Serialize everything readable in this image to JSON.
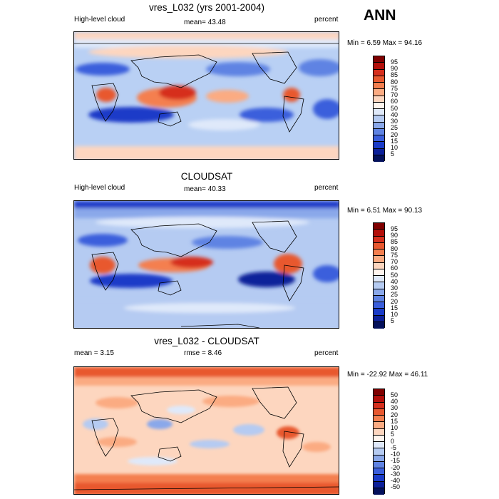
{
  "season": "ANN",
  "panels": [
    {
      "title": "vres_L032 (yrs 2001-2004)",
      "left_label": "High-level cloud",
      "mean_text": "mean=  43.48",
      "right_label": "percent",
      "minmax": "Min =   6.59 Max =  94.16",
      "bar_labels": [
        "95",
        "90",
        "85",
        "80",
        "75",
        "70",
        "60",
        "50",
        "40",
        "30",
        "25",
        "20",
        "15",
        "10",
        "5"
      ],
      "bar_colors": [
        "#7f0000",
        "#b30f0a",
        "#d62f1d",
        "#e8582f",
        "#f47f4f",
        "#fbab82",
        "#fdd6bf",
        "#fff5ee",
        "#dfe9fa",
        "#b5cbf2",
        "#8aa8ea",
        "#5f83e3",
        "#3a5edc",
        "#1a3bc8",
        "#0c209a",
        "#04115c"
      ]
    },
    {
      "title": "CLOUDSAT",
      "left_label": "High-level cloud",
      "mean_text": "mean=  40.33",
      "right_label": "percent",
      "minmax": "Min =   6.51 Max =  90.13",
      "bar_labels": [
        "95",
        "90",
        "85",
        "80",
        "75",
        "70",
        "60",
        "50",
        "40",
        "30",
        "25",
        "20",
        "15",
        "10",
        "5"
      ],
      "bar_colors": [
        "#7f0000",
        "#b30f0a",
        "#d62f1d",
        "#e8582f",
        "#f47f4f",
        "#fbab82",
        "#fdd6bf",
        "#fff5ee",
        "#dfe9fa",
        "#b5cbf2",
        "#8aa8ea",
        "#5f83e3",
        "#3a5edc",
        "#1a3bc8",
        "#0c209a",
        "#04115c"
      ]
    },
    {
      "title": "vres_L032 - CLOUDSAT",
      "left_label": "mean =   3.15",
      "mean_text": "rmse =   8.46",
      "right_label": "percent",
      "minmax": "Min = -22.92 Max =  46.11",
      "bar_labels": [
        "50",
        "40",
        "30",
        "20",
        "15",
        "10",
        "5",
        "0",
        "-5",
        "-10",
        "-15",
        "-20",
        "-30",
        "-40",
        "-50"
      ],
      "bar_colors": [
        "#7f0000",
        "#b30f0a",
        "#d62f1d",
        "#e8582f",
        "#f47f4f",
        "#fbab82",
        "#fdd6bf",
        "#fff5ee",
        "#dfe9fa",
        "#b5cbf2",
        "#8aa8ea",
        "#5f83e3",
        "#3a5edc",
        "#1a3bc8",
        "#0c209a",
        "#04115c"
      ]
    }
  ]
}
